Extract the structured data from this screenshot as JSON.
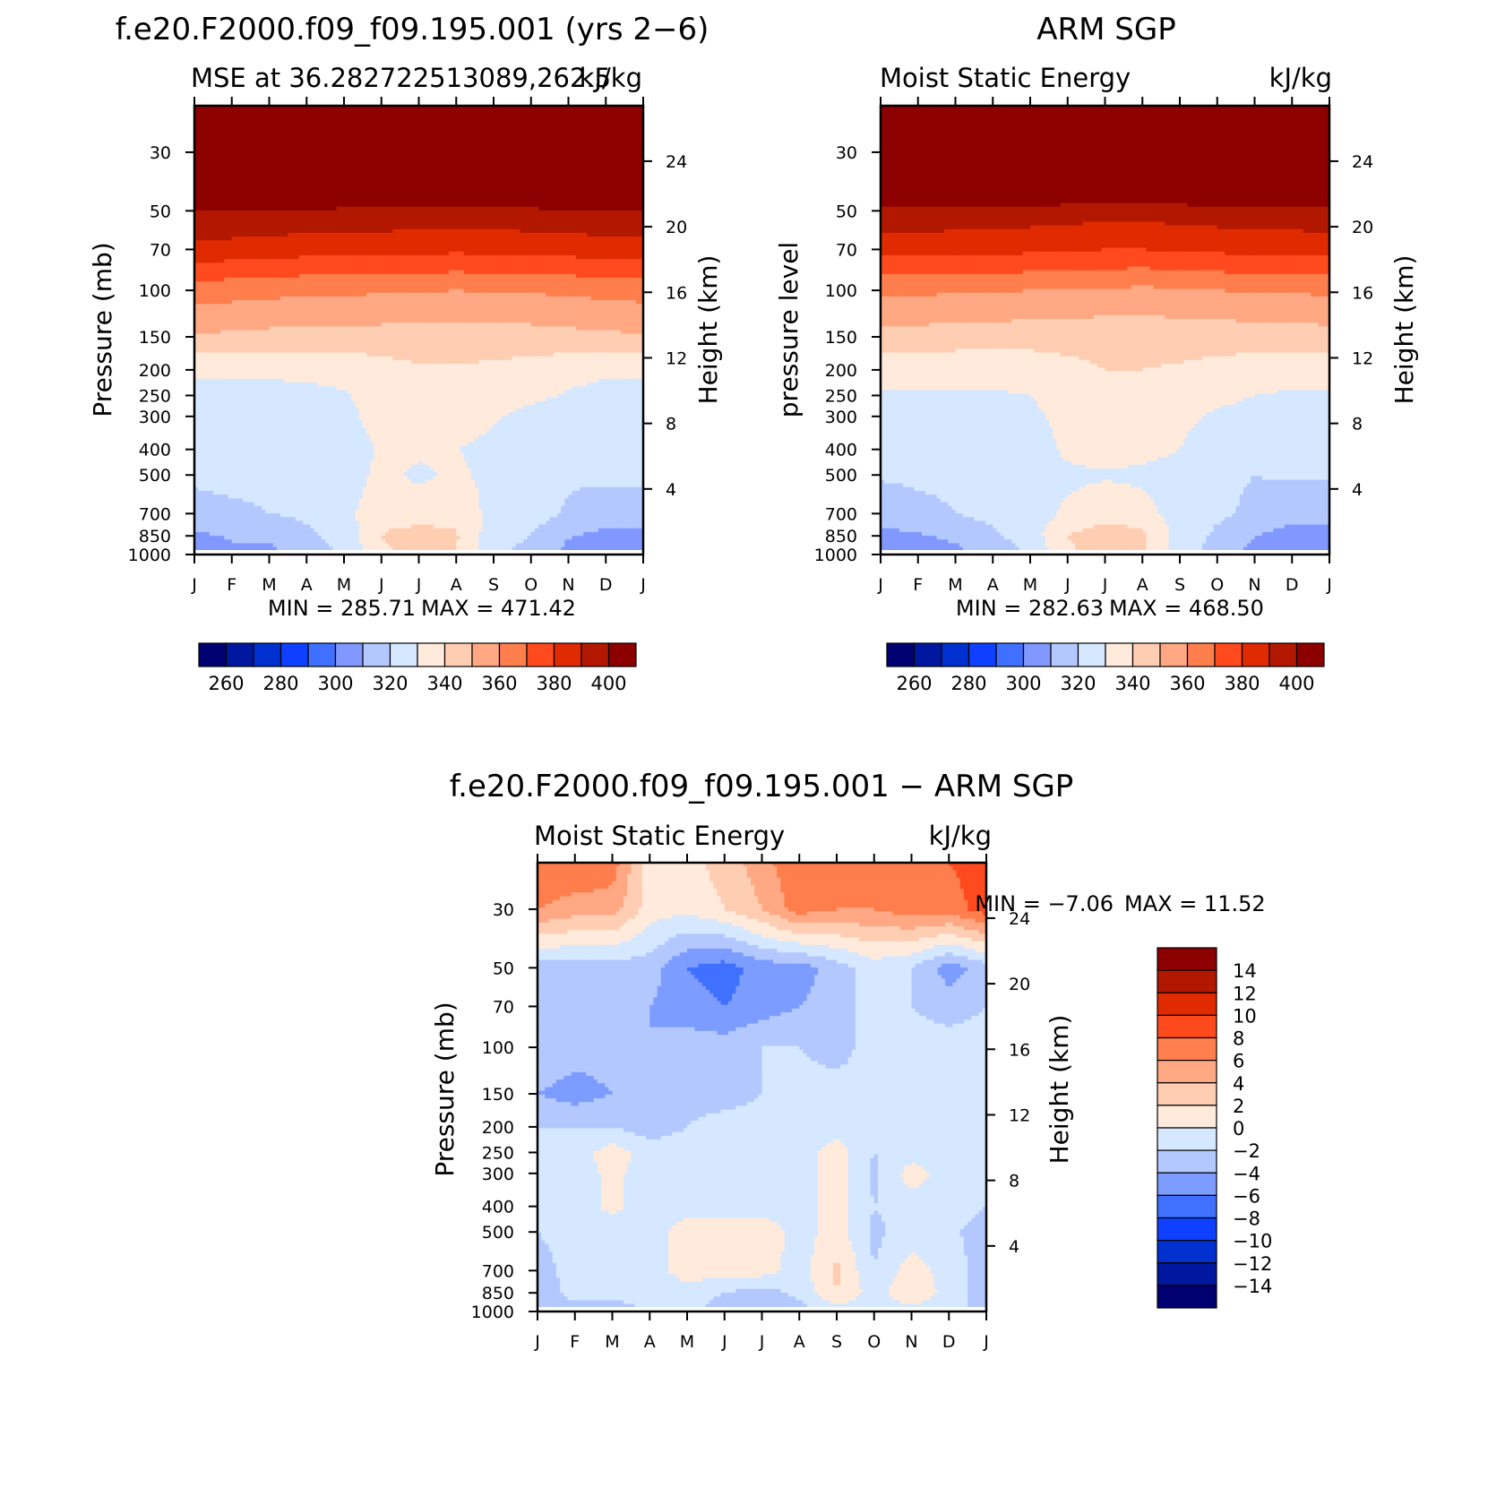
{
  "chart_data": [
    {
      "type": "heatmap",
      "title": "f.e20.F2000.f09_f09.195.001 (yrs 2-6)",
      "subtitle_left": "MSE at 36.282722513089,262.5",
      "subtitle_right": "kJ/kg",
      "ylabel": "Pressure (mb)",
      "ylabel_right": "Height (km)",
      "x": [
        "J",
        "F",
        "M",
        "A",
        "M",
        "J",
        "J",
        "A",
        "S",
        "O",
        "N",
        "D",
        "J"
      ],
      "yticks": [
        30,
        50,
        70,
        100,
        150,
        200,
        250,
        300,
        400,
        500,
        700,
        850,
        1000
      ],
      "yticks_right": [
        24,
        20,
        16,
        12,
        8,
        4
      ],
      "ylim": [
        20,
        1000
      ],
      "min_label": "MIN = 285.71",
      "max_label": "MAX = 471.42",
      "min": 285.71,
      "max": 471.42,
      "levels": [
        260,
        270,
        280,
        290,
        300,
        310,
        320,
        330,
        340,
        350,
        360,
        370,
        380,
        390,
        400
      ],
      "colorbar_labels": [
        "260",
        "280",
        "300",
        "320",
        "340",
        "360",
        "380",
        "400"
      ],
      "colorbar_orientation": "horizontal",
      "contour_pressures": [
        1000,
        850,
        700,
        500,
        400,
        300,
        250,
        200,
        150,
        100,
        70,
        50,
        30,
        20
      ],
      "z": [
        [
          305,
          308,
          307,
          314,
          321,
          338,
          343,
          340,
          321,
          317,
          306,
          303,
          305
        ],
        [
          308,
          311,
          312,
          318,
          324,
          340,
          344,
          341,
          324,
          320,
          311,
          307,
          308
        ],
        [
          316,
          318,
          320,
          322,
          326,
          338,
          335,
          338,
          326,
          324,
          319,
          315,
          316
        ],
        [
          322,
          323,
          322,
          320,
          324,
          333,
          328,
          332,
          327,
          322,
          321,
          322,
          322
        ],
        [
          323,
          324,
          324,
          323,
          324,
          331,
          332,
          330,
          328,
          322,
          321,
          322,
          323
        ],
        [
          326,
          326,
          326,
          326,
          327,
          334,
          335,
          334,
          331,
          327,
          326,
          326,
          326
        ],
        [
          328,
          328,
          328,
          328,
          329,
          335,
          336,
          336,
          335,
          332,
          329,
          328,
          328
        ],
        [
          331,
          331,
          331,
          332,
          333,
          336,
          339,
          339,
          338,
          336,
          333,
          331,
          331
        ],
        [
          349,
          348,
          347,
          346,
          346,
          346,
          345,
          345,
          345,
          346,
          347,
          348,
          349
        ],
        [
          365,
          364,
          363,
          362,
          362,
          361,
          361,
          360,
          361,
          361,
          362,
          363,
          364
        ],
        [
          387,
          386,
          385,
          384,
          384,
          383,
          383,
          382,
          383,
          383,
          384,
          385,
          386
        ],
        [
          400,
          400,
          399,
          399,
          398,
          398,
          397,
          397,
          397,
          398,
          399,
          399,
          400
        ],
        [
          445,
          445,
          445,
          445,
          445,
          445,
          445,
          445,
          445,
          445,
          445,
          445,
          445
        ],
        [
          470,
          470,
          470,
          470,
          470,
          470,
          470,
          470,
          470,
          470,
          470,
          470,
          470
        ]
      ]
    },
    {
      "type": "heatmap",
      "title": "ARM SGP",
      "subtitle_left": "Moist Static Energy",
      "subtitle_right": "kJ/kg",
      "ylabel": "pressure level",
      "ylabel_right": "Height (km)",
      "x": [
        "J",
        "F",
        "M",
        "A",
        "M",
        "J",
        "J",
        "A",
        "S",
        "O",
        "N",
        "D",
        "J"
      ],
      "yticks": [
        30,
        50,
        70,
        100,
        150,
        200,
        250,
        300,
        400,
        500,
        700,
        850,
        1000
      ],
      "yticks_right": [
        24,
        20,
        16,
        12,
        8,
        4
      ],
      "ylim": [
        20,
        1000
      ],
      "min_label": "MIN = 282.63",
      "max_label": "MAX = 468.50",
      "min": 282.63,
      "max": 468.5,
      "levels": [
        260,
        270,
        280,
        290,
        300,
        310,
        320,
        330,
        340,
        350,
        360,
        370,
        380,
        390,
        400
      ],
      "colorbar_labels": [
        "260",
        "280",
        "300",
        "320",
        "340",
        "360",
        "380",
        "400"
      ],
      "colorbar_orientation": "horizontal",
      "contour_pressures": [
        1000,
        850,
        700,
        500,
        400,
        300,
        250,
        200,
        150,
        100,
        70,
        50,
        30,
        20
      ],
      "z": [
        [
          302,
          304,
          307,
          313,
          322,
          338,
          345,
          343,
          324,
          316,
          306,
          302,
          302
        ],
        [
          307,
          309,
          312,
          318,
          325,
          340,
          346,
          342,
          326,
          318,
          310,
          306,
          307
        ],
        [
          314,
          317,
          320,
          323,
          325,
          332,
          336,
          334,
          325,
          322,
          318,
          314,
          314
        ],
        [
          321,
          322,
          322,
          320,
          324,
          328,
          329,
          328,
          326,
          322,
          320,
          321,
          321
        ],
        [
          323,
          324,
          324,
          323,
          324,
          332,
          334,
          333,
          330,
          322,
          321,
          322,
          323
        ],
        [
          326,
          326,
          326,
          326,
          327,
          334,
          337,
          336,
          333,
          328,
          326,
          326,
          326
        ],
        [
          329,
          329,
          329,
          329,
          330,
          336,
          339,
          338,
          336,
          333,
          330,
          329,
          329
        ],
        [
          333,
          333,
          333,
          333,
          334,
          337,
          340,
          340,
          339,
          337,
          335,
          333,
          333
        ],
        [
          346,
          346,
          345,
          345,
          344,
          344,
          343,
          343,
          344,
          344,
          345,
          345,
          346
        ],
        [
          362,
          362,
          361,
          361,
          360,
          359,
          359,
          358,
          359,
          360,
          361,
          361,
          362
        ],
        [
          384,
          384,
          383,
          383,
          382,
          381,
          380,
          380,
          381,
          382,
          383,
          383,
          384
        ],
        [
          398,
          398,
          397,
          397,
          396,
          395,
          394,
          394,
          395,
          396,
          397,
          397,
          398
        ],
        [
          442,
          442,
          442,
          442,
          442,
          442,
          442,
          442,
          442,
          442,
          442,
          442,
          442
        ],
        [
          467,
          467,
          467,
          467,
          467,
          467,
          467,
          467,
          467,
          467,
          467,
          467,
          467
        ]
      ]
    },
    {
      "type": "heatmap",
      "title": "f.e20.F2000.f09_f09.195.001 - ARM SGP",
      "subtitle_left": "Moist Static Energy",
      "subtitle_right": "kJ/kg",
      "ylabel": "Pressure (mb)",
      "ylabel_right": "Height (km)",
      "x": [
        "J",
        "F",
        "M",
        "A",
        "M",
        "J",
        "J",
        "A",
        "S",
        "O",
        "N",
        "D",
        "J"
      ],
      "yticks": [
        30,
        50,
        70,
        100,
        150,
        200,
        250,
        300,
        400,
        500,
        700,
        850,
        1000
      ],
      "yticks_right": [
        24,
        20,
        16,
        12,
        8,
        4
      ],
      "ylim": [
        20,
        1000
      ],
      "min_label": "MIN = -7.06",
      "max_label": "MAX = 11.52",
      "min": -7.06,
      "max": 11.52,
      "levels": [
        -14,
        -12,
        -10,
        -8,
        -6,
        -4,
        -2,
        0,
        2,
        4,
        6,
        8,
        10,
        12,
        14
      ],
      "colorbar_labels": [
        "14",
        "12",
        "10",
        "8",
        "6",
        "4",
        "2",
        "0",
        "-2",
        "-4",
        "-6",
        "-8",
        "-10",
        "-12",
        "-14"
      ],
      "colorbar_orientation": "vertical",
      "contour_pressures": [
        1000,
        850,
        700,
        500,
        400,
        300,
        250,
        200,
        150,
        100,
        70,
        50,
        30,
        20
      ],
      "z": [
        [
          -3,
          -2.5,
          -3,
          -2,
          -1.5,
          -3,
          -2.5,
          -3,
          -1,
          -1.5,
          -1,
          -1,
          -3
        ],
        [
          -3,
          -1.5,
          -1.5,
          -1,
          -1,
          -2,
          -3,
          -1.5,
          2,
          -1,
          2,
          -1,
          -3
        ],
        [
          -3,
          -1,
          -1,
          -1,
          1,
          1,
          1,
          -1,
          2.5,
          -2,
          1,
          -1,
          -3
        ],
        [
          -2,
          -1,
          -1,
          -1,
          1,
          1.5,
          1.5,
          -1,
          1,
          -2.5,
          -1,
          -1.5,
          -3
        ],
        [
          -1,
          -1,
          0.5,
          -1,
          -1,
          -1,
          -1,
          -1,
          1,
          -2,
          -1,
          -1,
          -2
        ],
        [
          -1,
          -1,
          0.5,
          -1,
          -1,
          -1,
          -1,
          -1,
          1,
          -2.5,
          1,
          -1,
          -1
        ],
        [
          -1,
          -1,
          1,
          -1,
          -1,
          -1,
          -1,
          -1,
          1,
          -2,
          -1,
          -1,
          -1
        ],
        [
          -2,
          -2,
          -2,
          -3,
          -2,
          -1,
          -1,
          -1,
          -1,
          -1,
          -1,
          -1,
          -1
        ],
        [
          -4,
          -5,
          -4,
          -3,
          -3,
          -3,
          -2,
          -1,
          -1,
          -1,
          -1,
          -1,
          -1
        ],
        [
          -2,
          -3,
          -3,
          -4,
          -3,
          -3,
          -2,
          -2,
          -3,
          -1,
          -1,
          -1,
          -1
        ],
        [
          -3,
          -3,
          -3,
          -4,
          -5,
          -6,
          -5,
          -4,
          -3,
          -1,
          -2,
          -3,
          -2
        ],
        [
          -3,
          -3,
          -3,
          -3,
          -6,
          -7,
          -5,
          -5,
          -3,
          -1,
          -2,
          -5,
          -3
        ],
        [
          6,
          5,
          5,
          1,
          0.5,
          2,
          4,
          7,
          6,
          6,
          7,
          7,
          9
        ],
        [
          8,
          8,
          7,
          1,
          1,
          3,
          5,
          8,
          8,
          8,
          8,
          8,
          9
        ]
      ]
    }
  ],
  "colors": {
    "mse_levels": [
      "#000070",
      "#0018a0",
      "#0030d0",
      "#1040ff",
      "#4070ff",
      "#8098ff",
      "#b2c8ff",
      "#d5e8ff",
      "#ffeadb",
      "#ffcdb2",
      "#ffa883",
      "#ff7e4d",
      "#ff4a1e",
      "#e02a00",
      "#b21800",
      "#8c0000"
    ],
    "diff_levels": [
      "#000070",
      "#0018a0",
      "#0030d0",
      "#1040ff",
      "#4070ff",
      "#7c9cff",
      "#b2c8ff",
      "#d5e8ff",
      "#ffeadb",
      "#ffcdb2",
      "#ffa883",
      "#ff7e4d",
      "#ff4a1e",
      "#e02a00",
      "#b21800",
      "#8c0000"
    ]
  }
}
